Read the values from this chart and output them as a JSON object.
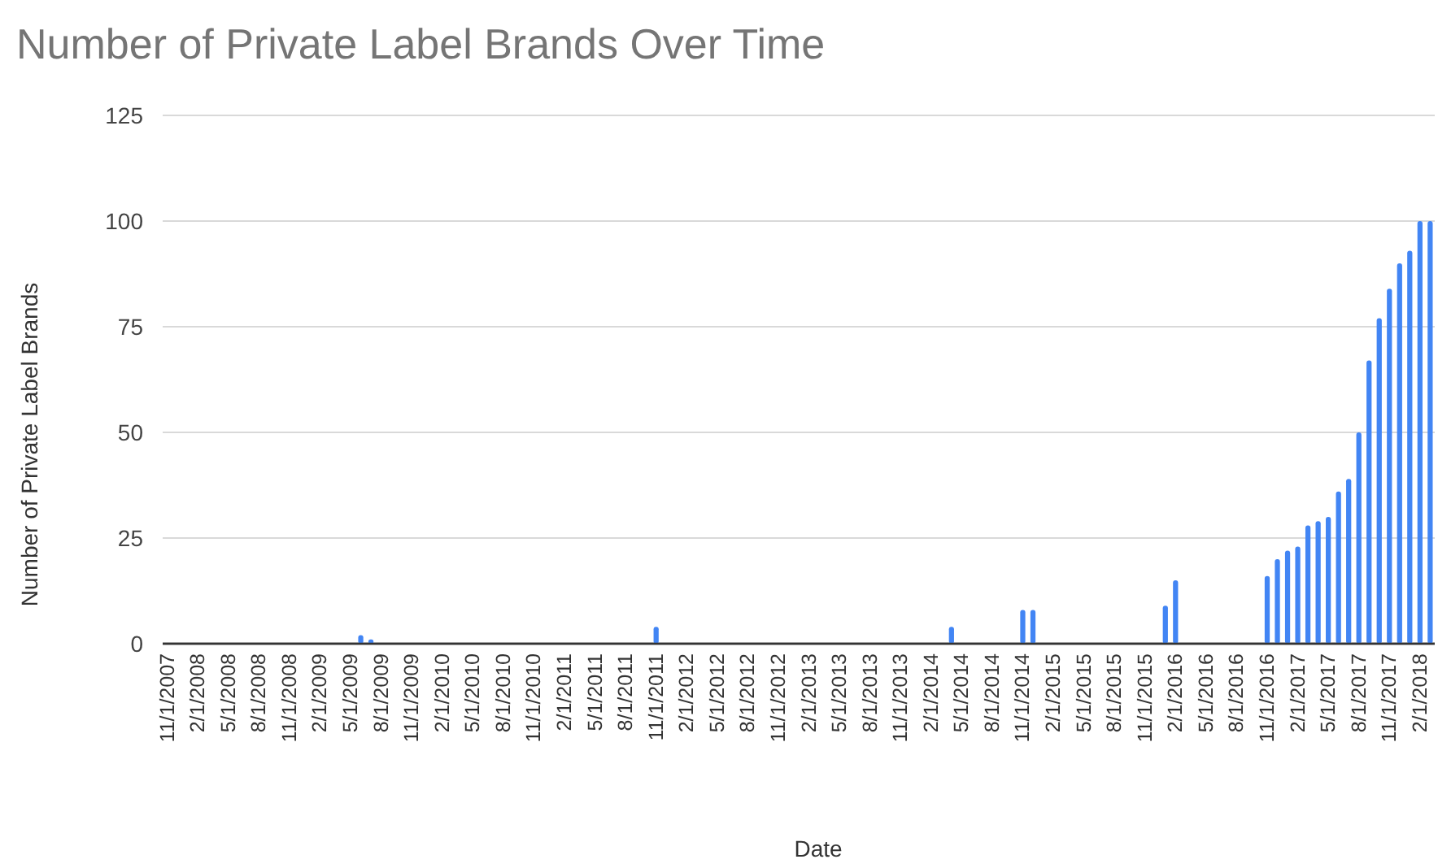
{
  "chart_data": {
    "type": "bar",
    "title": "Number of Private Label Brands Over Time",
    "xlabel": "Date",
    "ylabel": "Number of Private Label Brands",
    "categories": [
      "11/1/2007",
      null,
      null,
      "2/1/2008",
      null,
      null,
      "5/1/2008",
      null,
      null,
      "8/1/2008",
      null,
      null,
      "11/1/2008",
      null,
      null,
      "2/1/2009",
      null,
      null,
      "5/1/2009",
      null,
      null,
      "8/1/2009",
      null,
      null,
      "11/1/2009",
      null,
      null,
      "2/1/2010",
      null,
      null,
      "5/1/2010",
      null,
      null,
      "8/1/2010",
      null,
      null,
      "11/1/2010",
      null,
      null,
      "2/1/2011",
      null,
      null,
      "5/1/2011",
      null,
      null,
      "8/1/2011",
      null,
      null,
      "11/1/2011",
      null,
      null,
      "2/1/2012",
      null,
      null,
      "5/1/2012",
      null,
      null,
      "8/1/2012",
      null,
      null,
      "11/1/2012",
      null,
      null,
      "2/1/2013",
      null,
      null,
      "5/1/2013",
      null,
      null,
      "8/1/2013",
      null,
      null,
      "11/1/2013",
      null,
      null,
      "2/1/2014",
      null,
      null,
      "5/1/2014",
      null,
      null,
      "8/1/2014",
      null,
      null,
      "11/1/2014",
      null,
      null,
      "2/1/2015",
      null,
      null,
      "5/1/2015",
      null,
      null,
      "8/1/2015",
      null,
      null,
      "11/1/2015",
      null,
      null,
      "2/1/2016",
      null,
      null,
      "5/1/2016",
      null,
      null,
      "8/1/2016",
      null,
      null,
      "11/1/2016",
      null,
      null,
      "2/1/2017",
      null,
      null,
      "5/1/2017",
      null,
      null,
      "8/1/2017",
      null,
      null,
      "11/1/2017",
      null,
      null,
      "2/1/2018",
      null
    ],
    "values": [
      0,
      0,
      0,
      0,
      0,
      0,
      0,
      0,
      0,
      0,
      0,
      0,
      0,
      0,
      0,
      0,
      0,
      0,
      0,
      2,
      1,
      0,
      0,
      0,
      0,
      0,
      0,
      0,
      0,
      0,
      0,
      0,
      0,
      0,
      0,
      0,
      0,
      0,
      0,
      0,
      0,
      0,
      0,
      0,
      0,
      0,
      0,
      0,
      4,
      0,
      0,
      0,
      0,
      0,
      0,
      0,
      0,
      0,
      0,
      0,
      0,
      0,
      0,
      0,
      0,
      0,
      0,
      0,
      0,
      0,
      0,
      0,
      0,
      0,
      0,
      0,
      0,
      4,
      0,
      0,
      0,
      0,
      0,
      0,
      8,
      8,
      0,
      0,
      0,
      0,
      0,
      0,
      0,
      0,
      0,
      0,
      0,
      0,
      9,
      15,
      0,
      0,
      0,
      0,
      0,
      0,
      0,
      0,
      16,
      20,
      22,
      23,
      28,
      29,
      30,
      36,
      39,
      50,
      67,
      77,
      84,
      90,
      93,
      100,
      100
    ],
    "color": "#4285f4",
    "ylim": [
      0,
      125
    ],
    "yticks": [
      0,
      25,
      50,
      75,
      100,
      125
    ],
    "grid": "y"
  }
}
